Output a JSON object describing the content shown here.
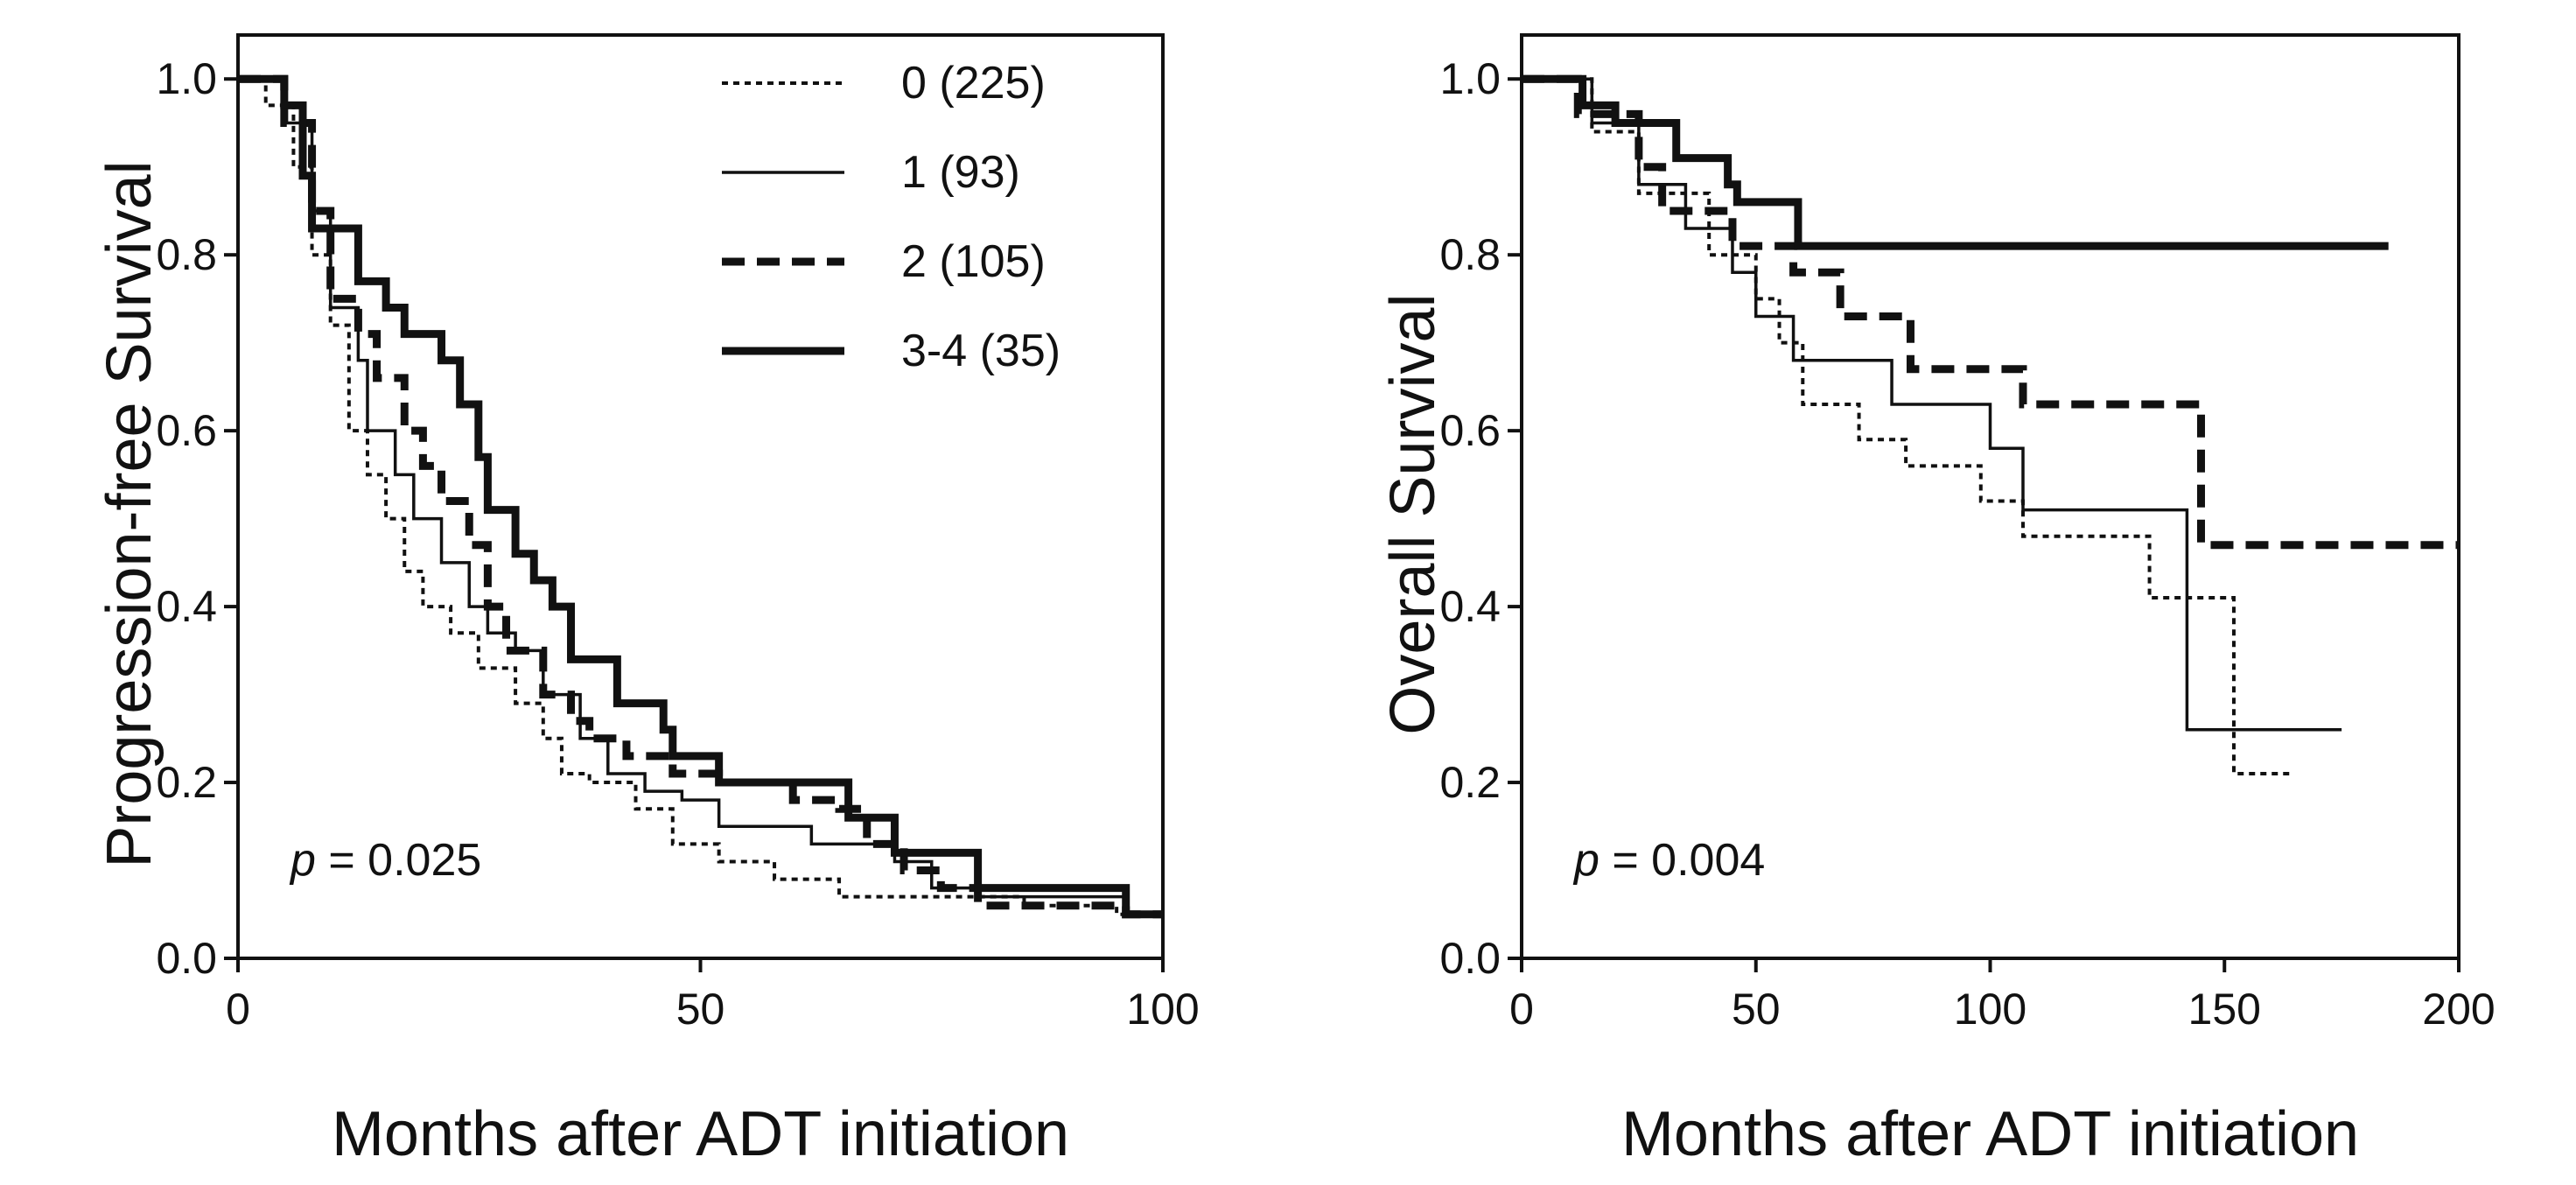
{
  "chart_data": [
    {
      "type": "line",
      "step": true,
      "title": "",
      "xlabel": "Months after ADT initiation",
      "ylabel": "Progression-free Survival",
      "xlim": [
        0,
        100
      ],
      "ylim": [
        0,
        1.0
      ],
      "xticks": [
        "0",
        "50",
        "100"
      ],
      "yticks": [
        "0.0",
        "0.2",
        "0.4",
        "0.6",
        "0.8",
        "1.0"
      ],
      "annotation_p": "p",
      "annotation_value": "= 0.025",
      "legend_placement": "top-right",
      "series": [
        {
          "name": "0 (225)",
          "style": "dotted",
          "points": [
            [
              0,
              1
            ],
            [
              3,
              0.97
            ],
            [
              6,
              0.9
            ],
            [
              8,
              0.8
            ],
            [
              10,
              0.72
            ],
            [
              12,
              0.6
            ],
            [
              14,
              0.55
            ],
            [
              16,
              0.5
            ],
            [
              18,
              0.44
            ],
            [
              20,
              0.4
            ],
            [
              23,
              0.37
            ],
            [
              26,
              0.33
            ],
            [
              30,
              0.29
            ],
            [
              33,
              0.25
            ],
            [
              35,
              0.21
            ],
            [
              38,
              0.2
            ],
            [
              43,
              0.17
            ],
            [
              47,
              0.13
            ],
            [
              52,
              0.11
            ],
            [
              58,
              0.09
            ],
            [
              65,
              0.07
            ],
            [
              80,
              0.07
            ],
            [
              85,
              0.06
            ],
            [
              95,
              0.05
            ],
            [
              100,
              0.05
            ]
          ]
        },
        {
          "name": "1 (93)",
          "style": "thin",
          "points": [
            [
              0,
              1
            ],
            [
              5,
              0.95
            ],
            [
              8,
              0.85
            ],
            [
              10,
              0.74
            ],
            [
              13,
              0.68
            ],
            [
              14,
              0.6
            ],
            [
              17,
              0.55
            ],
            [
              19,
              0.5
            ],
            [
              22,
              0.45
            ],
            [
              25,
              0.4
            ],
            [
              27,
              0.37
            ],
            [
              30,
              0.35
            ],
            [
              33,
              0.3
            ],
            [
              37,
              0.25
            ],
            [
              40,
              0.21
            ],
            [
              44,
              0.19
            ],
            [
              48,
              0.18
            ],
            [
              52,
              0.15
            ],
            [
              62,
              0.13
            ],
            [
              71,
              0.11
            ],
            [
              75,
              0.08
            ],
            [
              80,
              0.07
            ],
            [
              95,
              0.07
            ],
            [
              96,
              0.05
            ],
            [
              100,
              0.05
            ]
          ]
        },
        {
          "name": "2 (105)",
          "style": "dashed",
          "points": [
            [
              0,
              1
            ],
            [
              5,
              0.95
            ],
            [
              8,
              0.85
            ],
            [
              10,
              0.75
            ],
            [
              13,
              0.71
            ],
            [
              15,
              0.66
            ],
            [
              18,
              0.6
            ],
            [
              20,
              0.56
            ],
            [
              22,
              0.52
            ],
            [
              25,
              0.47
            ],
            [
              27,
              0.4
            ],
            [
              29,
              0.35
            ],
            [
              33,
              0.3
            ],
            [
              36,
              0.27
            ],
            [
              38,
              0.25
            ],
            [
              42,
              0.23
            ],
            [
              47,
              0.21
            ],
            [
              52,
              0.2
            ],
            [
              60,
              0.18
            ],
            [
              65,
              0.17
            ],
            [
              68,
              0.13
            ],
            [
              72,
              0.1
            ],
            [
              76,
              0.08
            ],
            [
              80,
              0.06
            ],
            [
              95,
              0.06
            ],
            [
              96,
              0.05
            ],
            [
              100,
              0.05
            ]
          ]
        },
        {
          "name": "3-4 (35)",
          "style": "thick",
          "points": [
            [
              0,
              1
            ],
            [
              5,
              0.97
            ],
            [
              7,
              0.89
            ],
            [
              8,
              0.83
            ],
            [
              13,
              0.77
            ],
            [
              16,
              0.74
            ],
            [
              18,
              0.71
            ],
            [
              22,
              0.68
            ],
            [
              24,
              0.63
            ],
            [
              26,
              0.57
            ],
            [
              27,
              0.51
            ],
            [
              30,
              0.46
            ],
            [
              32,
              0.43
            ],
            [
              34,
              0.4
            ],
            [
              36,
              0.34
            ],
            [
              41,
              0.29
            ],
            [
              46,
              0.26
            ],
            [
              47,
              0.23
            ],
            [
              52,
              0.2
            ],
            [
              66,
              0.16
            ],
            [
              71,
              0.12
            ],
            [
              80,
              0.08
            ],
            [
              95,
              0.08
            ],
            [
              96,
              0.05
            ],
            [
              100,
              0.05
            ]
          ]
        }
      ]
    },
    {
      "type": "line",
      "step": true,
      "title": "",
      "xlabel": "Months after ADT initiation",
      "ylabel": "Overall Survival",
      "xlim": [
        0,
        200
      ],
      "ylim": [
        0,
        1.0
      ],
      "xticks": [
        "0",
        "50",
        "100",
        "150",
        "200"
      ],
      "yticks": [
        "0.0",
        "0.2",
        "0.4",
        "0.6",
        "0.8",
        "1.0"
      ],
      "annotation_p": "p",
      "annotation_value": "= 0.004",
      "series": [
        {
          "name": "0 (225)",
          "style": "dotted",
          "points": [
            [
              0,
              1
            ],
            [
              15,
              0.94
            ],
            [
              25,
              0.87
            ],
            [
              40,
              0.8
            ],
            [
              50,
              0.75
            ],
            [
              55,
              0.7
            ],
            [
              60,
              0.63
            ],
            [
              72,
              0.59
            ],
            [
              82,
              0.56
            ],
            [
              98,
              0.52
            ],
            [
              107,
              0.48
            ],
            [
              134,
              0.41
            ],
            [
              152,
              0.21
            ],
            [
              164,
              0.21
            ]
          ]
        },
        {
          "name": "1 (93)",
          "style": "thin",
          "points": [
            [
              0,
              1
            ],
            [
              15,
              0.95
            ],
            [
              25,
              0.88
            ],
            [
              35,
              0.83
            ],
            [
              45,
              0.78
            ],
            [
              50,
              0.73
            ],
            [
              58,
              0.68
            ],
            [
              79,
              0.63
            ],
            [
              100,
              0.58
            ],
            [
              107,
              0.51
            ],
            [
              142,
              0.26
            ],
            [
              175,
              0.26
            ]
          ]
        },
        {
          "name": "2 (105)",
          "style": "dashed",
          "points": [
            [
              0,
              1
            ],
            [
              12,
              0.96
            ],
            [
              25,
              0.9
            ],
            [
              30,
              0.85
            ],
            [
              45,
              0.81
            ],
            [
              58,
              0.78
            ],
            [
              68,
              0.73
            ],
            [
              83,
              0.67
            ],
            [
              107,
              0.63
            ],
            [
              145,
              0.47
            ],
            [
              200,
              0.47
            ]
          ]
        },
        {
          "name": "3-4 (35)",
          "style": "thick",
          "points": [
            [
              0,
              1
            ],
            [
              13,
              0.97
            ],
            [
              20,
              0.95
            ],
            [
              33,
              0.91
            ],
            [
              44,
              0.88
            ],
            [
              46,
              0.86
            ],
            [
              59,
              0.81
            ],
            [
              185,
              0.81
            ]
          ]
        }
      ]
    }
  ]
}
